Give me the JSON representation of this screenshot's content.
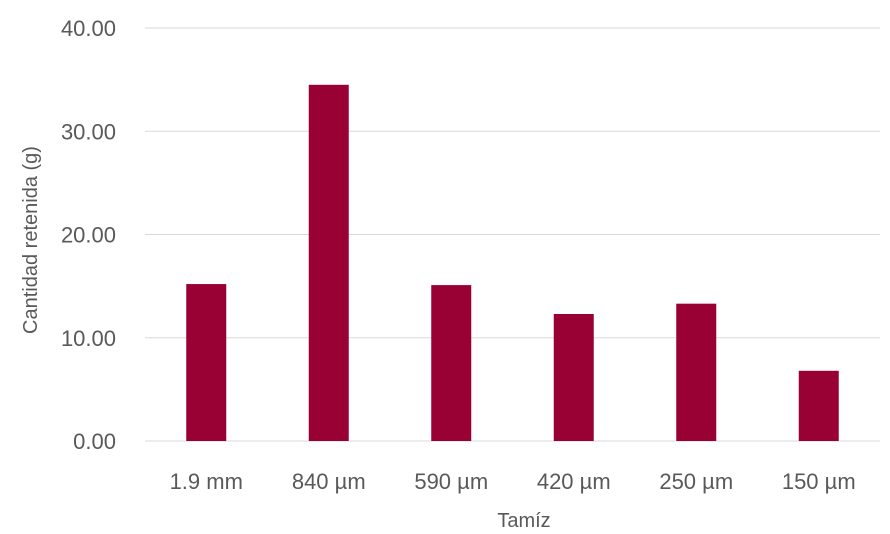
{
  "chart_data": {
    "type": "bar",
    "categories": [
      "1.9 mm",
      "840 µm",
      "590 µm",
      "420 µm",
      "250 µm",
      "150 µm"
    ],
    "values": [
      15.2,
      34.5,
      15.1,
      12.3,
      13.3,
      6.8
    ],
    "xlabel": "Tamíz",
    "ylabel": "Cantidad retenida (g)",
    "ylim": [
      0,
      40
    ],
    "yticks": [
      "0.00",
      "10.00",
      "20.00",
      "30.00",
      "40.00"
    ],
    "grid": true,
    "bar_color": "#990033",
    "grid_color": "#d9d9d9"
  }
}
